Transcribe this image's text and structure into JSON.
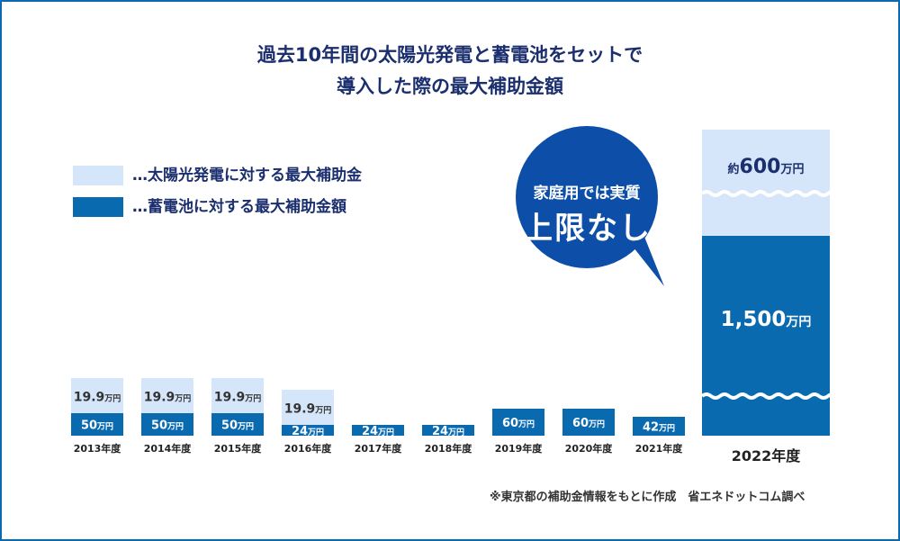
{
  "title": {
    "line1": "過去10年間の太陽光発電と蓄電池をセットで",
    "line2": "導入した際の最大補助金額"
  },
  "legend": {
    "solar": "…太陽光発電に対する最大補助金",
    "battery": "…蓄電池に対する最大補助金額"
  },
  "callout": {
    "line1": "家庭用では実質",
    "line2": "上限なし"
  },
  "footnote": "※東京都の補助金情報をもとに作成　省エネドットコム調べ",
  "colors": {
    "solar": "#d6e6fa",
    "battery": "#0a6ab0",
    "callout": "#0d4fa8",
    "title": "#1b2f6e",
    "border": "#0a6ab0"
  },
  "chart_data": {
    "type": "bar",
    "stacked": true,
    "unit": "万円",
    "categories": [
      "2013年度",
      "2014年度",
      "2015年度",
      "2016年度",
      "2017年度",
      "2018年度",
      "2019年度",
      "2020年度",
      "2021年度",
      "2022年度"
    ],
    "series": [
      {
        "name": "蓄電池に対する最大補助金額",
        "values": [
          50,
          50,
          50,
          24,
          24,
          24,
          60,
          60,
          42,
          1500
        ]
      },
      {
        "name": "太陽光発電に対する最大補助金",
        "values": [
          19.9,
          19.9,
          19.9,
          19.9,
          0,
          0,
          0,
          0,
          0,
          600
        ]
      }
    ],
    "battery_labels": [
      "50",
      "50",
      "50",
      "24",
      "24",
      "24",
      "60",
      "60",
      "42",
      "1,500"
    ],
    "solar_labels": [
      "19.9",
      "19.9",
      "19.9",
      "19.9",
      "",
      "",
      "",
      "",
      "",
      "600"
    ],
    "solar_prefix_2022": "約",
    "axis_break_category": "2022年度"
  }
}
